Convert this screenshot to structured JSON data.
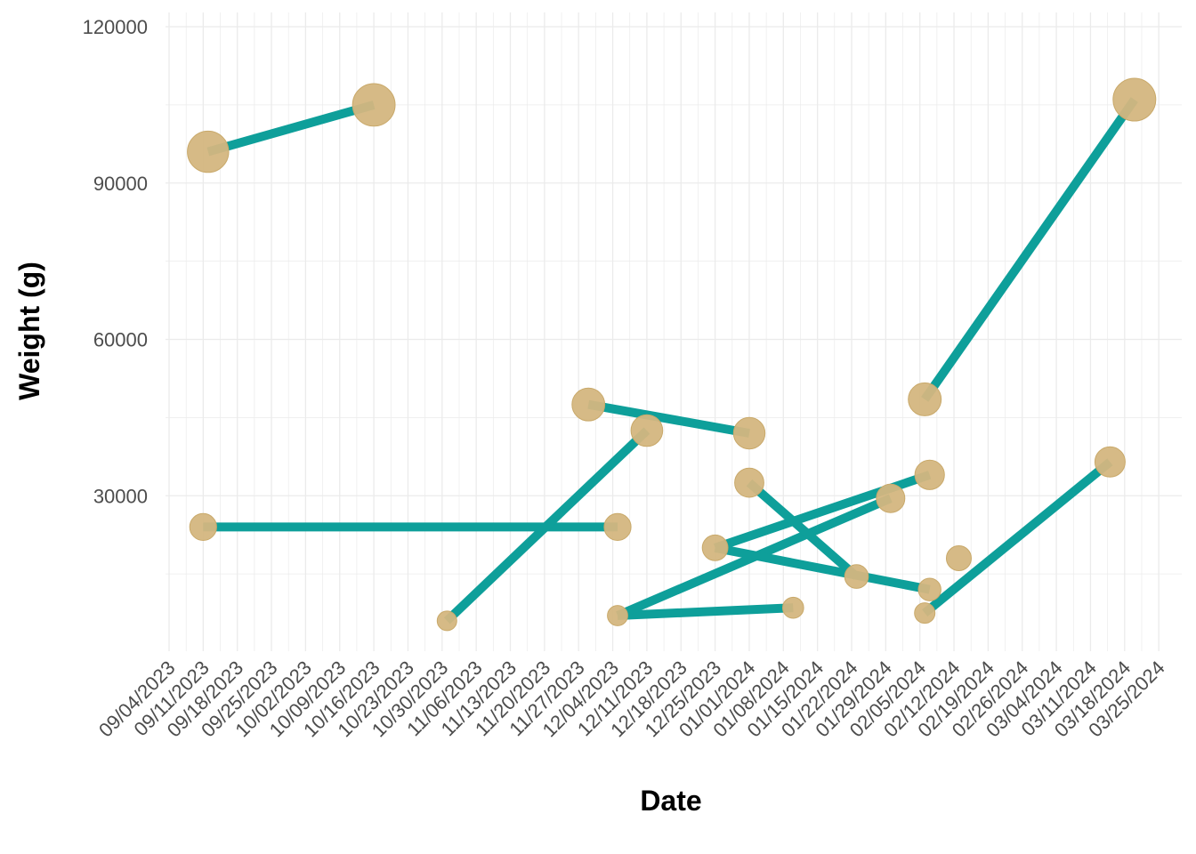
{
  "chart_data": {
    "type": "line",
    "title": "",
    "xlabel": "Date",
    "ylabel": "Weight (g)",
    "x_type": "date",
    "xlim": [
      "2023-09-04",
      "2024-03-25"
    ],
    "ylim": [
      0,
      120000
    ],
    "y_ticks": [
      30000,
      60000,
      90000,
      120000
    ],
    "x_ticks": [
      "09/04/2023",
      "09/11/2023",
      "09/18/2023",
      "09/25/2023",
      "10/02/2023",
      "10/09/2023",
      "10/16/2023",
      "10/23/2023",
      "10/30/2023",
      "11/06/2023",
      "11/13/2023",
      "11/20/2023",
      "11/27/2023",
      "12/04/2023",
      "12/11/2023",
      "12/18/2023",
      "12/25/2023",
      "01/01/2024",
      "01/08/2024",
      "01/15/2024",
      "01/22/2024",
      "01/29/2024",
      "02/05/2024",
      "02/12/2024",
      "02/19/2024",
      "02/26/2024",
      "03/04/2024",
      "03/11/2024",
      "03/18/2024",
      "03/25/2024"
    ],
    "grid": true,
    "legend": "none",
    "colors": {
      "line": "#0e9f9a",
      "point": "#d4b67f",
      "grid": "#ebebeb"
    },
    "series": [
      {
        "points": [
          {
            "x": "2023-09-12",
            "y": 96000
          },
          {
            "x": "2023-10-16",
            "y": 105000
          }
        ]
      },
      {
        "points": [
          {
            "x": "2023-09-11",
            "y": 24000
          },
          {
            "x": "2023-12-05",
            "y": 24000
          }
        ]
      },
      {
        "points": [
          {
            "x": "2023-10-31",
            "y": 6000
          },
          {
            "x": "2023-12-11",
            "y": 42500
          }
        ]
      },
      {
        "points": [
          {
            "x": "2023-11-29",
            "y": 47500
          },
          {
            "x": "2024-01-01",
            "y": 42000
          }
        ]
      },
      {
        "points": [
          {
            "x": "2023-12-05",
            "y": 7000
          },
          {
            "x": "2024-01-10",
            "y": 8500
          }
        ]
      },
      {
        "points": [
          {
            "x": "2023-12-05",
            "y": 7000
          },
          {
            "x": "2024-01-30",
            "y": 29500
          }
        ]
      },
      {
        "points": [
          {
            "x": "2023-12-25",
            "y": 20000
          },
          {
            "x": "2024-02-07",
            "y": 34000
          }
        ]
      },
      {
        "points": [
          {
            "x": "2023-12-25",
            "y": 20000
          },
          {
            "x": "2024-02-07",
            "y": 12000
          }
        ]
      },
      {
        "points": [
          {
            "x": "2024-01-01",
            "y": 32500
          },
          {
            "x": "2024-01-23",
            "y": 14500
          }
        ]
      },
      {
        "points": [
          {
            "x": "2024-02-06",
            "y": 48500
          },
          {
            "x": "2024-03-20",
            "y": 106000
          }
        ]
      },
      {
        "points": [
          {
            "x": "2024-02-06",
            "y": 7500
          },
          {
            "x": "2024-03-15",
            "y": 36500
          }
        ]
      },
      {
        "points": [
          {
            "x": "2024-02-13",
            "y": 18000
          }
        ]
      }
    ]
  }
}
